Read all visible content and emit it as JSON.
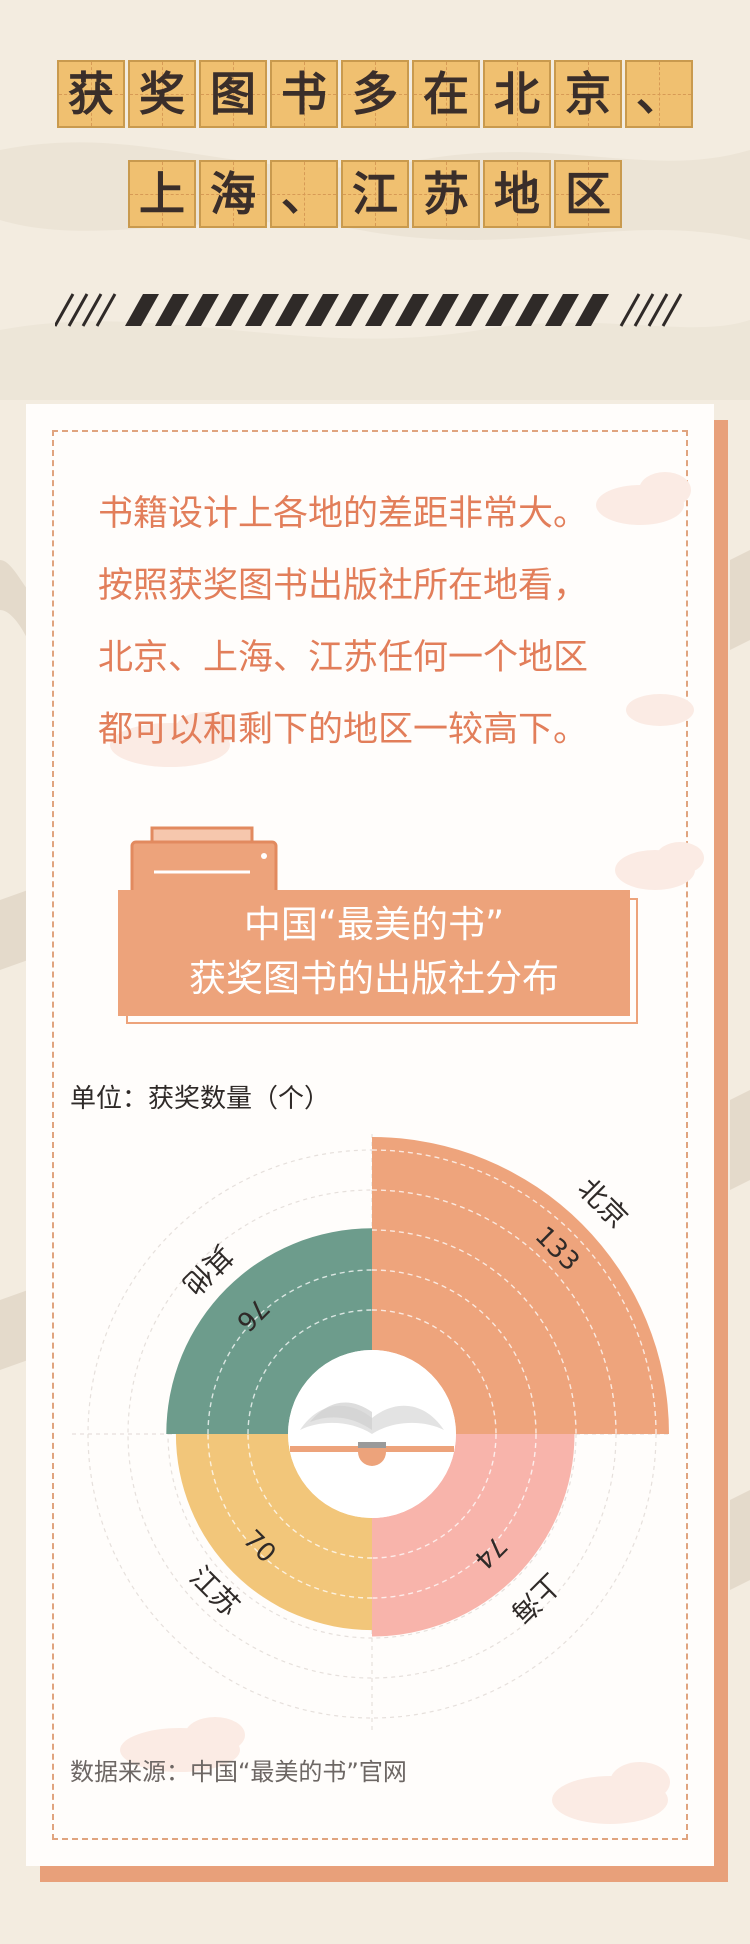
{
  "title": {
    "line1": [
      "获",
      "奖",
      "图",
      "书",
      "多",
      "在",
      "北",
      "京",
      "、"
    ],
    "line2": [
      "上",
      "海",
      "、",
      "江",
      "苏",
      "地",
      "区"
    ]
  },
  "intro": {
    "lines": [
      "书籍设计上各地的差距非常大。",
      "按照获奖图书出版社所在地看，",
      "北京、上海、江苏任何一个地区",
      "都可以和剩下的地区一较高下。"
    ]
  },
  "banner": {
    "line1": "中国“最美的书”",
    "line2": "获奖图书的出版社分布"
  },
  "unit_label": "单位：获奖数量（个）",
  "source": "数据来源：中国“最美的书”官网",
  "colors": {
    "beijing": "#eea47c",
    "shanghai": "#f8b4ab",
    "jiangsu": "#f2c67a",
    "other": "#6d9c8c",
    "accent": "#e27e5a"
  },
  "chart_data": {
    "type": "pie",
    "title": "中国“最美的书”获奖图书的出版社分布",
    "unit": "单位：获奖数量（个）",
    "categories": [
      "北京",
      "上海",
      "江苏",
      "其他"
    ],
    "values": [
      133,
      74,
      70,
      76
    ]
  }
}
